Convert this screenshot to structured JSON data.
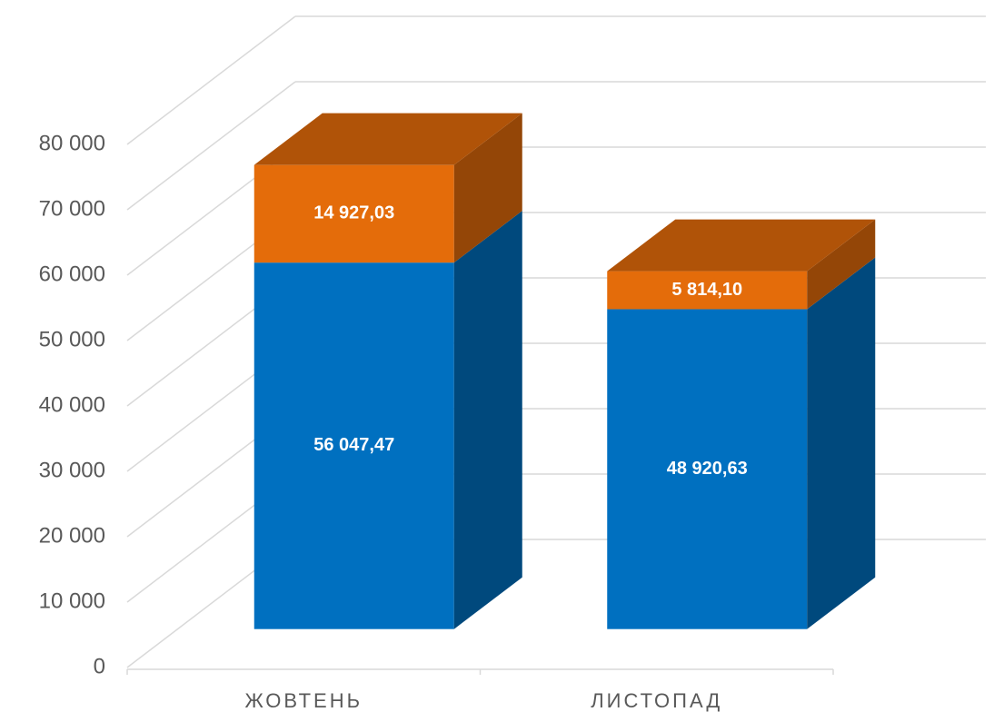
{
  "chart_data": {
    "type": "bar3d_stacked",
    "categories": [
      "ЖОВТЕНЬ",
      "ЛИСТОПАД"
    ],
    "series": [
      {
        "color": "#0070c0",
        "values": [
          56047.47,
          48920.63
        ],
        "value_labels": [
          "56 047,47",
          "48 920,63"
        ]
      },
      {
        "color": "#e46c0a",
        "values": [
          14927.03,
          5814.1
        ],
        "value_labels": [
          "14 927,03",
          "5 814,10"
        ]
      }
    ],
    "ylim": [
      0,
      80000
    ],
    "yticks": [
      0,
      {
        "value": 10000,
        "label": "10 000"
      },
      {
        "value": 20000,
        "label": "20 000"
      },
      {
        "value": 30000,
        "label": "30 000"
      },
      {
        "value": 40000,
        "label": "40 000"
      },
      {
        "value": 50000,
        "label": "50 000"
      },
      {
        "value": 60000,
        "label": "60 000"
      },
      {
        "value": 70000,
        "label": "70 000"
      },
      {
        "value": 80000,
        "label": "80 000"
      }
    ],
    "grid": true
  }
}
